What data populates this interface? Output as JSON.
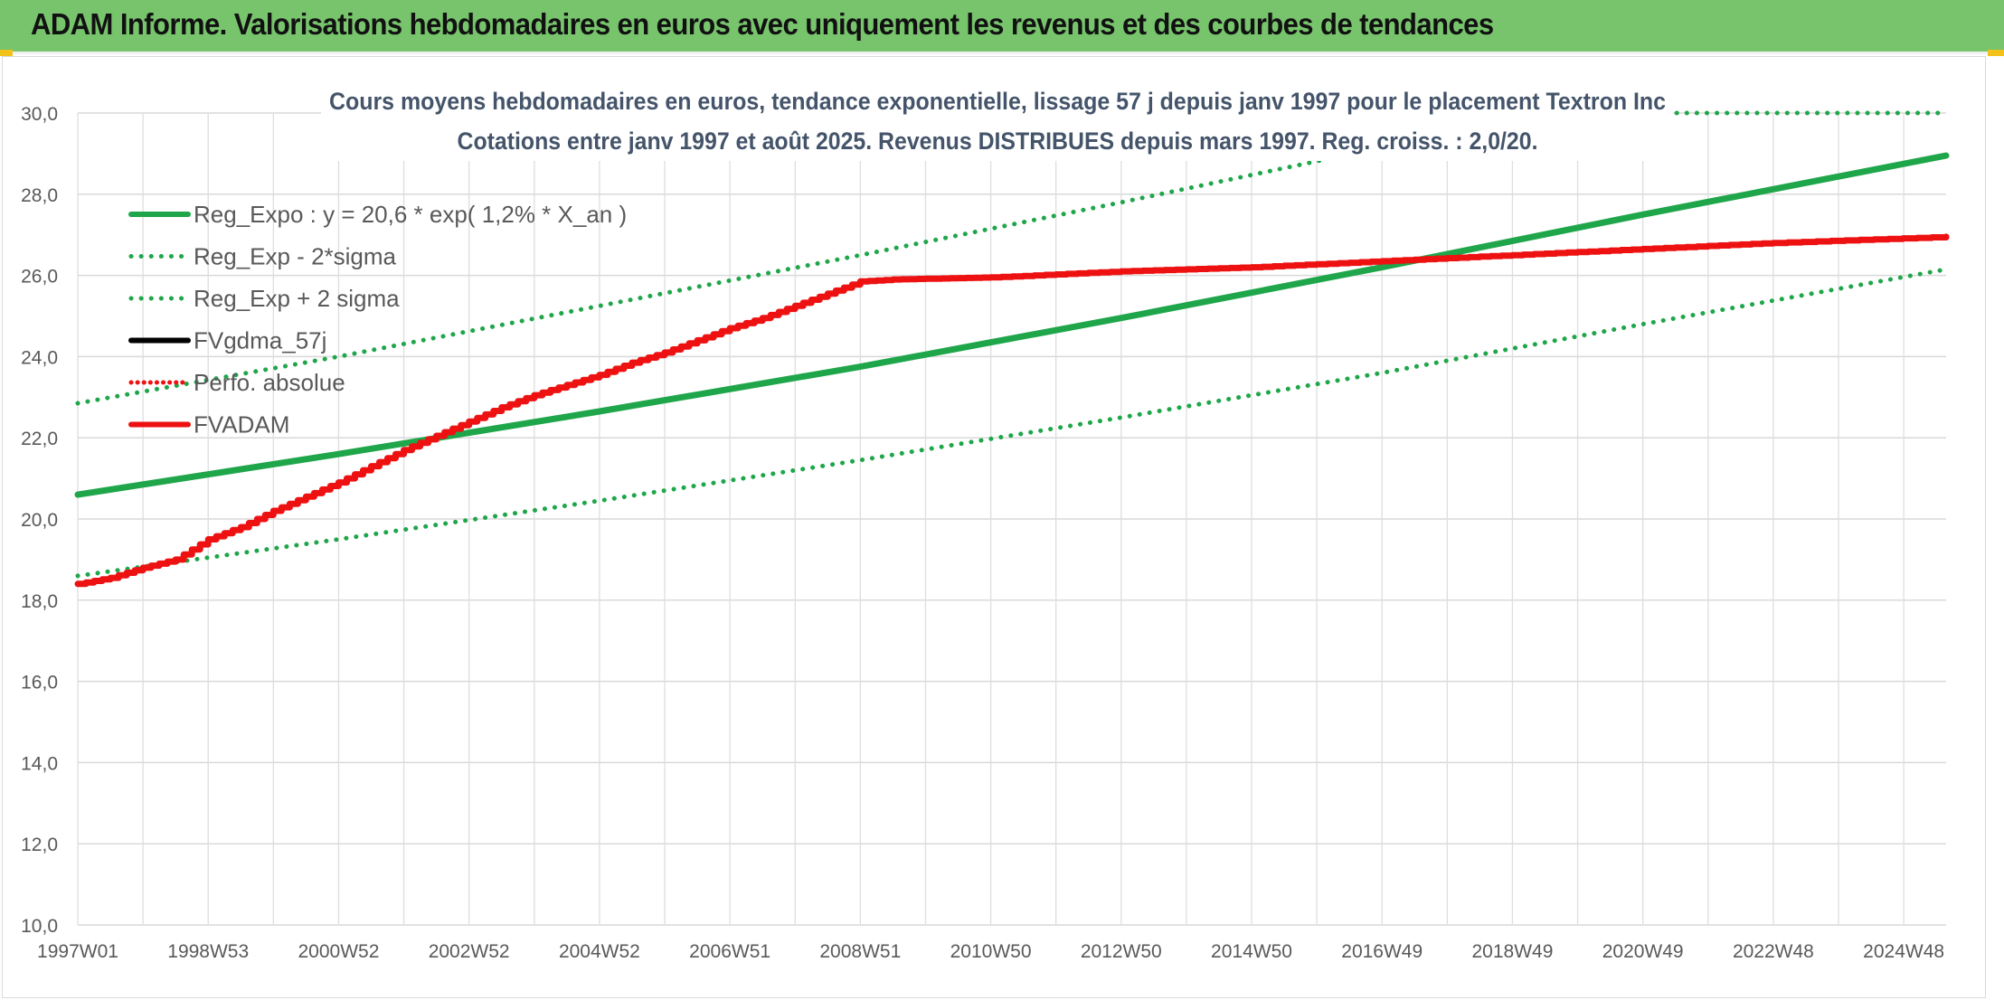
{
  "header": {
    "title": "ADAM Informe. Valorisations hebdomadaires en euros avec uniquement les revenus et des courbes de tendances"
  },
  "chart_data": {
    "type": "line",
    "title": "Cours moyens hebdomadaires en euros, tendance exponentielle, lissage 57 j depuis janv 1997 pour le placement Textron Inc",
    "subtitle": "Cotations entre janv 1997 et août 2025. Revenus DISTRIBUES depuis mars 1997. Reg. croiss. : 2,0/20.",
    "xlabel": "",
    "ylabel": "",
    "x_start": 1997.0,
    "x_end": 2025.65,
    "ylim": [
      10,
      30
    ],
    "y_ticks": [
      "10,0",
      "12,0",
      "14,0",
      "16,0",
      "18,0",
      "20,0",
      "22,0",
      "24,0",
      "26,0",
      "28,0",
      "30,0"
    ],
    "x_ticks": [
      {
        "label": "1997W01",
        "x": 1997.0
      },
      {
        "label": "1998W53",
        "x": 1999.0
      },
      {
        "label": "2000W52",
        "x": 2001.0
      },
      {
        "label": "2002W52",
        "x": 2003.0
      },
      {
        "label": "2004W52",
        "x": 2005.0
      },
      {
        "label": "2006W51",
        "x": 2007.0
      },
      {
        "label": "2008W51",
        "x": 2009.0
      },
      {
        "label": "2010W50",
        "x": 2011.0
      },
      {
        "label": "2012W50",
        "x": 2013.0
      },
      {
        "label": "2014W50",
        "x": 2015.0
      },
      {
        "label": "2016W49",
        "x": 2017.0
      },
      {
        "label": "2018W49",
        "x": 2019.0
      },
      {
        "label": "2020W49",
        "x": 2021.0
      },
      {
        "label": "2022W48",
        "x": 2023.0
      },
      {
        "label": "2024W48",
        "x": 2025.0
      }
    ],
    "legend": [
      "Reg_Expo : y = 20,6 * exp( 1,2% *  X_an )",
      "Reg_Exp - 2*sigma",
      "Reg_Exp + 2 sigma",
      "FVgdma_57j",
      "Perfo. absolue",
      "FVADAM"
    ],
    "legend_position": "top-left",
    "grid": true,
    "colors": {
      "reg_expo": "#1fa64a",
      "sigma": "#1fa64a",
      "fvgdma": "#000000",
      "perfo": "#ee1111",
      "fvadam": "#ee1111"
    },
    "series": [
      {
        "name": "Reg_Expo : y = 20,6 * exp( 1,2% *  X_an )",
        "style": "solid",
        "x": [
          1997.0,
          2001.0,
          2005.0,
          2009.0,
          2013.0,
          2017.0,
          2021.0,
          2025.65
        ],
        "values": [
          20.6,
          21.6,
          22.65,
          23.75,
          24.95,
          26.2,
          27.5,
          28.95
        ]
      },
      {
        "name": "Reg_Exp - 2*sigma",
        "style": "dotted",
        "x": [
          1997.0,
          2001.0,
          2005.0,
          2009.0,
          2013.0,
          2017.0,
          2021.0,
          2025.65
        ],
        "values": [
          18.6,
          19.5,
          20.45,
          21.45,
          22.5,
          23.6,
          24.8,
          26.15
        ]
      },
      {
        "name": "Reg_Exp + 2 sigma",
        "style": "dotted",
        "x": [
          1997.0,
          2001.0,
          2005.0,
          2009.0,
          2013.0,
          2017.0,
          2021.0,
          2025.65
        ],
        "values": [
          22.85,
          24.0,
          25.25,
          26.5,
          27.8,
          29.15,
          30.0,
          30.0
        ]
      },
      {
        "name": "FVgdma_57j",
        "style": "solid",
        "x": [],
        "values": []
      },
      {
        "name": "Perfo. absolue",
        "style": "dotted",
        "x": [],
        "values": []
      },
      {
        "name": "FVADAM",
        "style": "stepped",
        "x": [
          1997.0,
          1997.5,
          1998.0,
          1998.5,
          1999.0,
          1999.5,
          2000.0,
          2000.5,
          2001.0,
          2001.5,
          2002.0,
          2002.5,
          2003.0,
          2003.5,
          2004.0,
          2004.5,
          2005.0,
          2005.5,
          2006.0,
          2006.5,
          2007.0,
          2007.5,
          2008.0,
          2008.5,
          2009.0,
          2009.5,
          2011.0,
          2013.0,
          2015.0,
          2017.0,
          2019.0,
          2021.0,
          2023.0,
          2025.65
        ],
        "values": [
          18.4,
          18.55,
          18.8,
          19.0,
          19.5,
          19.8,
          20.2,
          20.55,
          20.9,
          21.3,
          21.7,
          22.05,
          22.4,
          22.75,
          23.05,
          23.3,
          23.55,
          23.85,
          24.1,
          24.4,
          24.7,
          24.95,
          25.25,
          25.55,
          25.85,
          25.9,
          25.95,
          26.1,
          26.2,
          26.35,
          26.5,
          26.65,
          26.8,
          26.95
        ]
      }
    ]
  }
}
